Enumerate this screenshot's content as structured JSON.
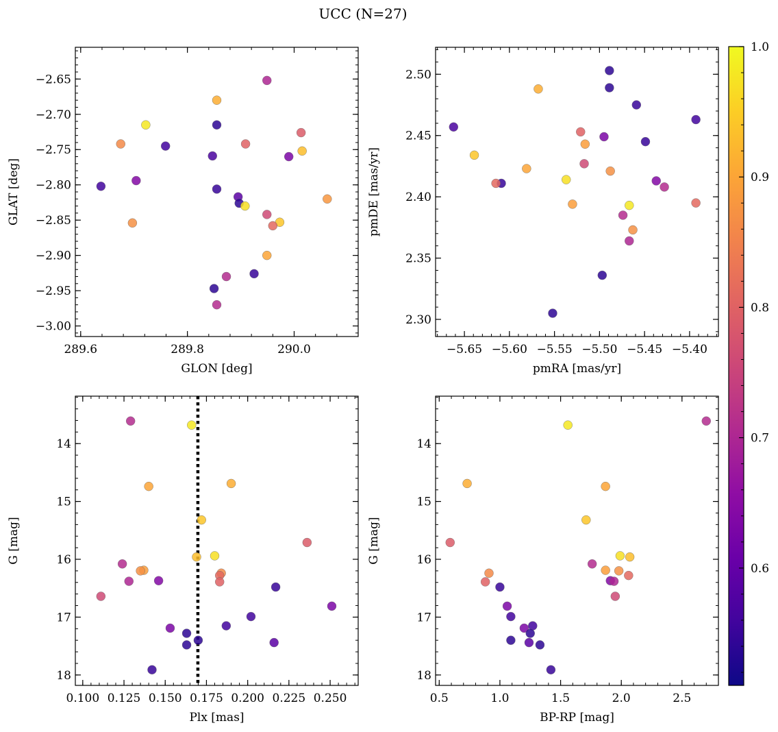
{
  "figure": {
    "title": "UCC (N=27)"
  },
  "colorbar": {
    "range": [
      0.51,
      1.0
    ],
    "ticks": [
      0.6,
      0.7,
      0.8,
      0.9,
      1.0
    ],
    "tick_labels": [
      "0.6",
      "0.7",
      "0.8",
      "0.9",
      "1.0"
    ],
    "colormap": "plasma"
  },
  "chart_data": [
    {
      "type": "scatter",
      "title": "",
      "xlabel": "GLON [deg]",
      "ylabel": "GLAT [deg]",
      "xlim": [
        289.59,
        290.12
      ],
      "ylim": [
        -3.015,
        -2.605
      ],
      "xticks": [
        289.6,
        289.8,
        290.0
      ],
      "xtick_labels": [
        "289.6",
        "289.8",
        "290.0"
      ],
      "yticks": [
        -3.0,
        -2.95,
        -2.9,
        -2.85,
        -2.8,
        -2.75,
        -2.7,
        -2.65
      ],
      "ytick_labels": [
        "−3.00",
        "−2.95",
        "−2.90",
        "−2.85",
        "−2.80",
        "−2.75",
        "−2.70",
        "−2.65"
      ],
      "x": [
        289.949,
        289.855,
        289.722,
        289.855,
        290.013,
        289.675,
        289.759,
        289.909,
        290.015,
        289.847,
        289.99,
        289.638,
        289.704,
        289.855,
        290.062,
        289.895,
        289.897,
        289.908,
        289.949,
        289.973,
        289.697,
        289.96,
        289.949,
        289.873,
        289.925,
        289.85,
        289.855
      ],
      "y": [
        -2.652,
        -2.68,
        -2.715,
        -2.715,
        -2.726,
        -2.742,
        -2.745,
        -2.742,
        -2.752,
        -2.759,
        -2.76,
        -2.802,
        -2.794,
        -2.806,
        -2.82,
        -2.817,
        -2.826,
        -2.83,
        -2.842,
        -2.853,
        -2.854,
        -2.858,
        -2.9,
        -2.93,
        -2.926,
        -2.947,
        -2.97
      ],
      "c": [
        0.7,
        0.91,
        0.98,
        0.54,
        0.79,
        0.86,
        0.56,
        0.8,
        0.93,
        0.57,
        0.63,
        0.56,
        0.64,
        0.55,
        0.88,
        0.59,
        0.54,
        0.97,
        0.76,
        0.94,
        0.87,
        0.81,
        0.9,
        0.71,
        0.55,
        0.54,
        0.71
      ]
    },
    {
      "type": "scatter",
      "title": "",
      "xlabel": "pmRA [mas/yr]",
      "ylabel": "pmDE [mas/yr]",
      "xlim": [
        -5.682,
        -5.368
      ],
      "ylim": [
        2.286,
        2.522
      ],
      "xticks": [
        -5.65,
        -5.6,
        -5.55,
        -5.5,
        -5.45,
        -5.4
      ],
      "xtick_labels": [
        "−5.65",
        "−5.60",
        "−5.55",
        "−5.50",
        "−5.45",
        "−5.40"
      ],
      "yticks": [
        2.3,
        2.35,
        2.4,
        2.45,
        2.5
      ],
      "ytick_labels": [
        "2.30",
        "2.35",
        "2.40",
        "2.45",
        "2.50"
      ],
      "x": [
        -5.489,
        -5.568,
        -5.489,
        -5.459,
        -5.393,
        -5.662,
        -5.449,
        -5.521,
        -5.495,
        -5.639,
        -5.516,
        -5.517,
        -5.581,
        -5.488,
        -5.609,
        -5.615,
        -5.537,
        -5.437,
        -5.428,
        -5.393,
        -5.53,
        -5.467,
        -5.474,
        -5.463,
        -5.467,
        -5.497,
        -5.552
      ],
      "y": [
        2.503,
        2.488,
        2.489,
        2.475,
        2.463,
        2.457,
        2.445,
        2.453,
        2.449,
        2.434,
        2.443,
        2.427,
        2.423,
        2.421,
        2.411,
        2.411,
        2.414,
        2.413,
        2.408,
        2.395,
        2.394,
        2.393,
        2.385,
        2.373,
        2.364,
        2.336,
        2.305
      ],
      "c": [
        0.54,
        0.91,
        0.54,
        0.55,
        0.56,
        0.57,
        0.55,
        0.8,
        0.63,
        0.94,
        0.89,
        0.76,
        0.9,
        0.87,
        0.55,
        0.81,
        0.97,
        0.64,
        0.71,
        0.81,
        0.89,
        0.98,
        0.71,
        0.87,
        0.7,
        0.54,
        0.54
      ]
    },
    {
      "type": "scatter",
      "title": "",
      "xlabel": "Plx [mas]",
      "ylabel": "G [mag]",
      "xlim": [
        0.0955,
        0.267
      ],
      "ylim": [
        18.18,
        13.18
      ],
      "yinverted": true,
      "vline": 0.1698,
      "xticks": [
        0.1,
        0.125,
        0.15,
        0.175,
        0.2,
        0.225,
        0.25
      ],
      "xtick_labels": [
        "0.100",
        "0.125",
        "0.150",
        "0.175",
        "0.200",
        "0.225",
        "0.250"
      ],
      "yticks": [
        14,
        15,
        16,
        17,
        18
      ],
      "ytick_labels": [
        "14",
        "15",
        "16",
        "17",
        "18"
      ],
      "x": [
        0.129,
        0.166,
        0.14,
        0.19,
        0.172,
        0.236,
        0.18,
        0.169,
        0.124,
        0.137,
        0.135,
        0.184,
        0.183,
        0.183,
        0.128,
        0.146,
        0.217,
        0.111,
        0.251,
        0.202,
        0.153,
        0.187,
        0.163,
        0.17,
        0.216,
        0.163,
        0.142
      ],
      "y": [
        13.61,
        13.68,
        14.74,
        14.69,
        15.32,
        15.71,
        15.94,
        15.96,
        16.08,
        16.19,
        16.2,
        16.24,
        16.28,
        16.39,
        16.38,
        16.37,
        16.48,
        16.64,
        16.81,
        16.99,
        17.19,
        17.15,
        17.28,
        17.4,
        17.44,
        17.48,
        17.91
      ],
      "c": [
        0.71,
        0.98,
        0.9,
        0.91,
        0.94,
        0.79,
        0.97,
        0.93,
        0.71,
        0.89,
        0.87,
        0.86,
        0.81,
        0.8,
        0.7,
        0.64,
        0.55,
        0.76,
        0.63,
        0.56,
        0.63,
        0.56,
        0.54,
        0.54,
        0.59,
        0.54,
        0.55
      ]
    },
    {
      "type": "scatter",
      "title": "",
      "xlabel": "BP-RP [mag]",
      "ylabel": "G [mag]",
      "xlim": [
        0.47,
        2.8
      ],
      "ylim": [
        18.18,
        13.18
      ],
      "yinverted": true,
      "xticks": [
        0.5,
        1.0,
        1.5,
        2.0,
        2.5
      ],
      "xtick_labels": [
        "0.5",
        "1.0",
        "1.5",
        "2.0",
        "2.5"
      ],
      "yticks": [
        14,
        15,
        16,
        17,
        18
      ],
      "ytick_labels": [
        "14",
        "15",
        "16",
        "17",
        "18"
      ],
      "x": [
        2.7,
        1.56,
        1.87,
        0.73,
        1.71,
        0.59,
        1.99,
        2.07,
        1.76,
        1.87,
        1.98,
        0.91,
        2.06,
        0.88,
        1.91,
        1.94,
        1.0,
        1.95,
        1.06,
        1.09,
        1.2,
        1.27,
        1.25,
        1.09,
        1.24,
        1.33,
        1.42
      ],
      "y": [
        13.61,
        13.68,
        14.74,
        14.69,
        15.32,
        15.71,
        15.94,
        15.96,
        16.08,
        16.19,
        16.2,
        16.24,
        16.28,
        16.39,
        16.37,
        16.38,
        16.48,
        16.64,
        16.81,
        16.99,
        17.19,
        17.15,
        17.28,
        17.4,
        17.44,
        17.48,
        17.91
      ],
      "c": [
        0.71,
        0.98,
        0.9,
        0.91,
        0.94,
        0.79,
        0.97,
        0.93,
        0.71,
        0.89,
        0.87,
        0.86,
        0.81,
        0.8,
        0.64,
        0.7,
        0.55,
        0.76,
        0.63,
        0.56,
        0.63,
        0.56,
        0.54,
        0.54,
        0.59,
        0.54,
        0.55
      ]
    }
  ]
}
